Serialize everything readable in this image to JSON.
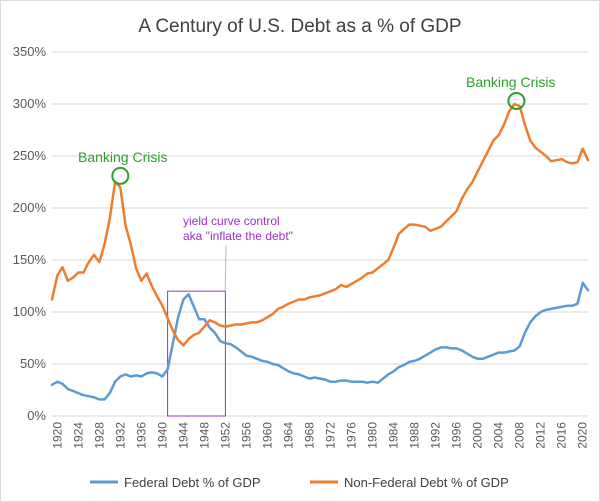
{
  "chart_data": {
    "type": "line",
    "title": "A Century of U.S. Debt as a % of GDP",
    "ylim": [
      0,
      350
    ],
    "yticks": [
      0,
      50,
      100,
      150,
      200,
      250,
      300,
      350
    ],
    "ytick_labels": [
      "0%",
      "50%",
      "100%",
      "150%",
      "200%",
      "250%",
      "300%",
      "350%"
    ],
    "xlim": [
      1919,
      2021
    ],
    "xticks": [
      1920,
      1924,
      1928,
      1932,
      1936,
      1940,
      1944,
      1948,
      1952,
      1956,
      1960,
      1964,
      1968,
      1972,
      1976,
      1980,
      1984,
      1988,
      1992,
      1996,
      2000,
      2004,
      2008,
      2012,
      2016,
      2020
    ],
    "grid": true,
    "legend_position": "bottom",
    "series": [
      {
        "name": "Federal Debt % of GDP",
        "color": "#5b9bd5",
        "x": [
          1919,
          1920,
          1921,
          1922,
          1923,
          1924,
          1925,
          1926,
          1927,
          1928,
          1929,
          1930,
          1931,
          1932,
          1933,
          1934,
          1935,
          1936,
          1937,
          1938,
          1939,
          1940,
          1941,
          1942,
          1943,
          1944,
          1945,
          1946,
          1947,
          1948,
          1949,
          1950,
          1951,
          1952,
          1953,
          1954,
          1955,
          1956,
          1957,
          1958,
          1959,
          1960,
          1961,
          1962,
          1963,
          1964,
          1965,
          1966,
          1967,
          1968,
          1969,
          1970,
          1971,
          1972,
          1973,
          1974,
          1975,
          1976,
          1977,
          1978,
          1979,
          1980,
          1981,
          1982,
          1983,
          1984,
          1985,
          1986,
          1987,
          1988,
          1989,
          1990,
          1991,
          1992,
          1993,
          1994,
          1995,
          1996,
          1997,
          1998,
          1999,
          2000,
          2001,
          2002,
          2003,
          2004,
          2005,
          2006,
          2007,
          2008,
          2009,
          2010,
          2011,
          2012,
          2013,
          2014,
          2015,
          2016,
          2017,
          2018,
          2019,
          2020,
          2021
        ],
        "values": [
          30,
          33,
          31,
          26,
          24,
          22,
          20,
          19,
          18,
          16,
          16,
          22,
          33,
          38,
          40,
          38,
          39,
          38,
          41,
          42,
          41,
          38,
          45,
          70,
          95,
          112,
          117,
          105,
          93,
          93,
          85,
          80,
          72,
          70,
          69,
          66,
          62,
          58,
          57,
          55,
          53,
          52,
          50,
          49,
          46,
          43,
          41,
          40,
          38,
          36,
          37,
          36,
          35,
          33,
          33,
          34,
          34,
          33,
          33,
          33,
          32,
          33,
          32,
          36,
          40,
          43,
          47,
          49,
          52,
          53,
          55,
          58,
          61,
          64,
          66,
          66,
          65,
          65,
          63,
          60,
          57,
          55,
          55,
          57,
          59,
          61,
          61,
          62,
          63,
          67,
          80,
          90,
          96,
          100,
          102,
          103,
          104,
          105,
          106,
          106,
          108,
          128,
          121
        ]
      },
      {
        "name": "Non-Federal Debt % of GDP",
        "color": "#ed7d31",
        "x": [
          1919,
          1920,
          1921,
          1922,
          1923,
          1924,
          1925,
          1926,
          1927,
          1928,
          1929,
          1930,
          1931,
          1932,
          1933,
          1934,
          1935,
          1936,
          1937,
          1938,
          1939,
          1940,
          1941,
          1942,
          1943,
          1944,
          1945,
          1946,
          1947,
          1948,
          1949,
          1950,
          1951,
          1952,
          1953,
          1954,
          1955,
          1956,
          1957,
          1958,
          1959,
          1960,
          1961,
          1962,
          1963,
          1964,
          1965,
          1966,
          1967,
          1968,
          1969,
          1970,
          1971,
          1972,
          1973,
          1974,
          1975,
          1976,
          1977,
          1978,
          1979,
          1980,
          1981,
          1982,
          1983,
          1984,
          1985,
          1986,
          1987,
          1988,
          1989,
          1990,
          1991,
          1992,
          1993,
          1994,
          1995,
          1996,
          1997,
          1998,
          1999,
          2000,
          2001,
          2002,
          2003,
          2004,
          2005,
          2006,
          2007,
          2008,
          2009,
          2010,
          2011,
          2012,
          2013,
          2014,
          2015,
          2016,
          2017,
          2018,
          2019,
          2020,
          2021
        ],
        "values": [
          112,
          135,
          143,
          130,
          133,
          138,
          138,
          148,
          155,
          148,
          165,
          190,
          225,
          220,
          183,
          165,
          142,
          130,
          137,
          125,
          115,
          106,
          94,
          82,
          73,
          68,
          74,
          78,
          80,
          86,
          92,
          90,
          87,
          86,
          87,
          88,
          88,
          89,
          90,
          90,
          92,
          95,
          98,
          103,
          105,
          108,
          110,
          112,
          112,
          114,
          115,
          116,
          118,
          120,
          122,
          126,
          124,
          127,
          130,
          133,
          137,
          138,
          142,
          146,
          150,
          162,
          175,
          180,
          184,
          184,
          183,
          182,
          178,
          180,
          182,
          187,
          192,
          197,
          209,
          218,
          225,
          235,
          245,
          255,
          265,
          270,
          280,
          293,
          300,
          298,
          280,
          265,
          258,
          254,
          250,
          245,
          246,
          247,
          244,
          243,
          244,
          257,
          246
        ]
      }
    ],
    "annotations": [
      {
        "text": "Banking Crisis",
        "x": 1932,
        "y": 229
      },
      {
        "text": "Banking Crisis",
        "x": 2007,
        "y": 301
      },
      {
        "text": "yield curve control",
        "x": 1946,
        "y": 105
      },
      {
        "text": "aka \"inflate the debt\"",
        "x": 1946,
        "y": 105
      }
    ],
    "highlight_range": [
      1941,
      1952
    ]
  }
}
